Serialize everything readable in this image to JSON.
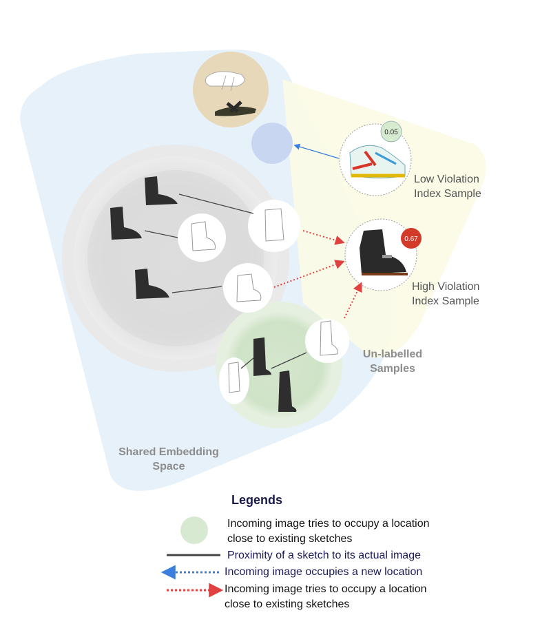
{
  "labels": {
    "shared_space": [
      "Shared Embedding",
      "Space"
    ],
    "unlabelled": [
      "Un-labelled",
      "Samples"
    ],
    "low_sample": [
      "Low Violation",
      "Index Sample"
    ],
    "high_sample": [
      "High Violation",
      "Index Sample"
    ],
    "low_score": "0.05",
    "high_score": "0.67"
  },
  "legend": {
    "title": "Legends",
    "items": [
      {
        "kind": "green-circle",
        "lines": [
          "Incoming image tries to occupy a location",
          "close to existing sketches"
        ]
      },
      {
        "kind": "solid-line",
        "lines": [
          "Proximity of a sketch to its actual image"
        ]
      },
      {
        "kind": "blue-dotted-arrow",
        "lines": [
          "Incoming image occupies a new location"
        ]
      },
      {
        "kind": "red-dotted-arrow",
        "lines": [
          "Incoming image tries to occupy a location",
          "close to existing sketches"
        ]
      }
    ]
  },
  "colors": {
    "shared_region": "#e3eef8",
    "unlabelled_region": "#fbfbe6",
    "gray_cluster": "#dcdcdc",
    "green_cluster": "#cfe3c8",
    "tan_cluster": "#e6d8b8",
    "blue_location": "#c8d6f2",
    "proximity_line": "#444444",
    "blue_arrow": "#3a7ee0",
    "red_arrow": "#e04040",
    "high_score_badge": "#d23a2a",
    "low_score_badge": "#cfe6c8"
  }
}
